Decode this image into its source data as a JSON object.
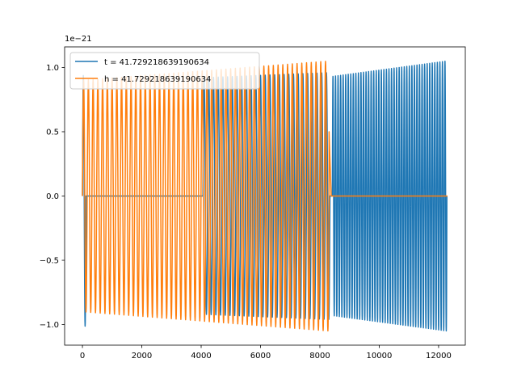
{
  "chart_data": {
    "type": "line",
    "title": "",
    "xlabel": "",
    "ylabel": "",
    "offset_label": "1e−21",
    "xlim": [
      -600,
      12900
    ],
    "ylim": [
      -1.16,
      1.16
    ],
    "x_ticks": [
      0,
      2000,
      4000,
      6000,
      8000,
      10000,
      12000
    ],
    "x_tick_labels": [
      "0",
      "2000",
      "4000",
      "6000",
      "8000",
      "10000",
      "12000"
    ],
    "y_ticks": [
      -1.0,
      -0.5,
      0.0,
      0.5,
      1.0
    ],
    "y_tick_labels": [
      "−1.0",
      "−0.5",
      "0.0",
      "0.5",
      "1.0"
    ],
    "grid": false,
    "legend_position": "upper-left",
    "series": [
      {
        "name": "t = 41.729218639190634",
        "color": "#1f77b4",
        "segments": [
          {
            "x_start": 0,
            "x_end": 120,
            "kind": "burst",
            "amp_start": 0.9,
            "amp_end": 1.05,
            "cycles": 1
          },
          {
            "x_start": 120,
            "x_end": 4060,
            "kind": "flat",
            "value": 0.0
          },
          {
            "x_start": 4060,
            "x_end": 8340,
            "kind": "oscillation",
            "amp_start": 0.92,
            "amp_end": 0.96,
            "cycles": 27
          },
          {
            "x_start": 8340,
            "x_end": 8420,
            "kind": "flat",
            "value": 0.0
          },
          {
            "x_start": 8420,
            "x_end": 12280,
            "kind": "oscillation",
            "amp_start": 0.93,
            "amp_end": 1.05,
            "cycles": 45
          }
        ]
      },
      {
        "name": "h = 41.729218639190634",
        "color": "#ff7f0e",
        "segments": [
          {
            "x_start": 0,
            "x_end": 8310,
            "kind": "oscillation",
            "amp_start": 0.9,
            "amp_end": 1.05,
            "cycles": 52
          },
          {
            "x_start": 8310,
            "x_end": 8380,
            "kind": "drop",
            "value_start": 0.5,
            "value_end": 0.0
          },
          {
            "x_start": 8380,
            "x_end": 12300,
            "kind": "flat",
            "value": 0.0
          }
        ]
      }
    ]
  }
}
